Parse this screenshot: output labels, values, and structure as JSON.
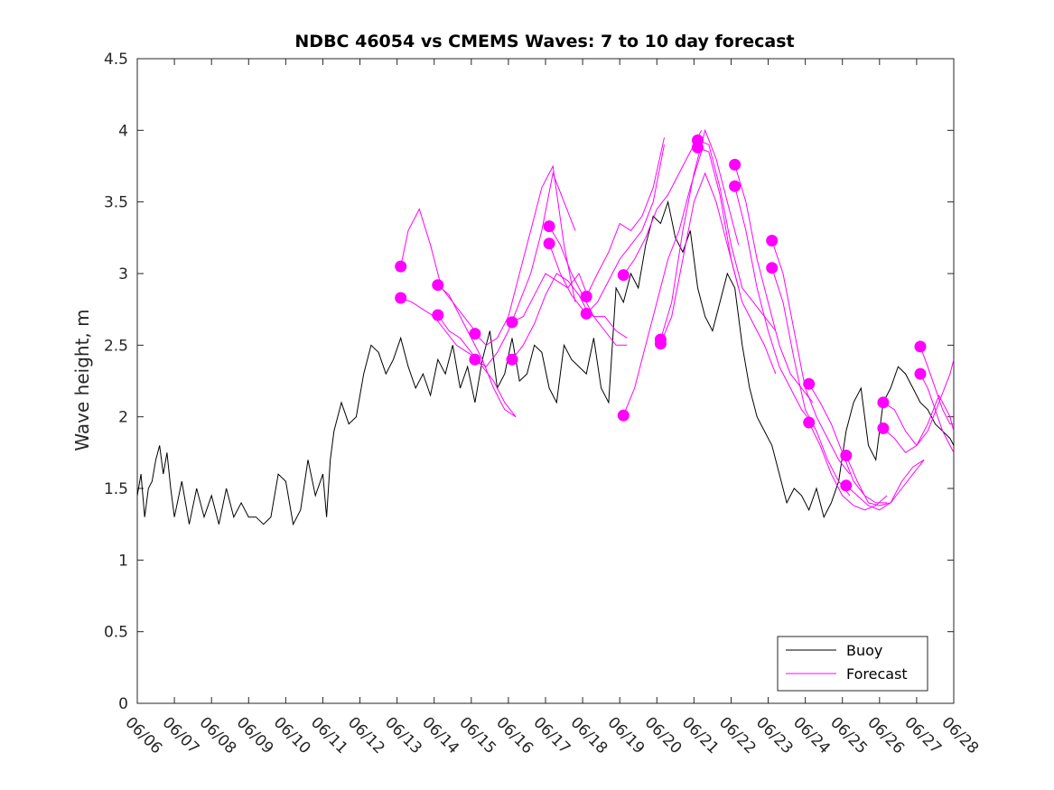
{
  "chart_data": {
    "type": "line",
    "title": "NDBC 46054 vs CMEMS Waves: 7 to 10 day forecast",
    "xlabel": "",
    "ylabel": "Wave height, m",
    "ylim": [
      0,
      4.5
    ],
    "yticks": [
      "0",
      "0.5",
      "1",
      "1.5",
      "2",
      "2.5",
      "3",
      "3.5",
      "4",
      "4.5"
    ],
    "xlim": [
      "06/06",
      "06/28"
    ],
    "xticks": [
      "06/06",
      "06/07",
      "06/08",
      "06/09",
      "06/10",
      "06/11",
      "06/12",
      "06/13",
      "06/14",
      "06/15",
      "06/16",
      "06/17",
      "06/18",
      "06/19",
      "06/20",
      "06/21",
      "06/22",
      "06/23",
      "06/24",
      "06/25",
      "06/26",
      "06/27",
      "06/28"
    ],
    "grid": false,
    "legend": {
      "placement": "bottom-right",
      "entries": [
        "Buoy",
        "Forecast"
      ]
    },
    "colors": {
      "buoy": "#000000",
      "forecast": "#ff00ff"
    },
    "series": [
      {
        "name": "Buoy",
        "x": [
          0,
          0.1,
          0.2,
          0.3,
          0.4,
          0.5,
          0.6,
          0.7,
          0.8,
          0.9,
          1.0,
          1.2,
          1.4,
          1.6,
          1.8,
          2.0,
          2.2,
          2.4,
          2.6,
          2.8,
          3.0,
          3.2,
          3.4,
          3.6,
          3.8,
          4.0,
          4.2,
          4.4,
          4.6,
          4.8,
          5.0,
          5.1,
          5.2,
          5.3,
          5.5,
          5.7,
          5.9,
          6.1,
          6.3,
          6.5,
          6.7,
          6.9,
          7.1,
          7.3,
          7.5,
          7.7,
          7.9,
          8.1,
          8.3,
          8.5,
          8.7,
          8.9,
          9.1,
          9.3,
          9.5,
          9.7,
          9.9,
          10.1,
          10.3,
          10.5,
          10.7,
          10.9,
          11.1,
          11.3,
          11.5,
          11.7,
          11.9,
          12.1,
          12.3,
          12.5,
          12.7,
          12.9,
          13.1,
          13.3,
          13.5,
          13.7,
          13.9,
          14.1,
          14.3,
          14.5,
          14.7,
          14.9,
          15.1,
          15.3,
          15.5,
          15.7,
          15.9,
          16.1,
          16.3,
          16.5,
          16.7,
          16.9,
          17.1,
          17.3,
          17.5,
          17.7,
          17.9,
          18.1,
          18.3,
          18.5,
          18.7,
          18.9,
          19.1,
          19.3,
          19.5,
          19.7,
          19.9,
          20.1,
          20.3,
          20.5,
          20.7,
          20.9,
          21.1,
          21.3,
          21.5,
          21.7,
          21.9,
          22.0
        ],
        "y": [
          1.45,
          1.6,
          1.3,
          1.5,
          1.55,
          1.7,
          1.8,
          1.6,
          1.75,
          1.5,
          1.3,
          1.55,
          1.25,
          1.5,
          1.3,
          1.45,
          1.25,
          1.5,
          1.3,
          1.4,
          1.3,
          1.3,
          1.25,
          1.3,
          1.6,
          1.55,
          1.25,
          1.35,
          1.7,
          1.45,
          1.6,
          1.3,
          1.7,
          1.9,
          2.1,
          1.95,
          2.0,
          2.3,
          2.5,
          2.45,
          2.3,
          2.4,
          2.55,
          2.35,
          2.2,
          2.3,
          2.15,
          2.4,
          2.3,
          2.5,
          2.2,
          2.35,
          2.1,
          2.4,
          2.6,
          2.2,
          2.3,
          2.55,
          2.25,
          2.3,
          2.5,
          2.45,
          2.2,
          2.1,
          2.5,
          2.4,
          2.35,
          2.3,
          2.55,
          2.2,
          2.1,
          2.9,
          2.8,
          3.0,
          2.9,
          3.2,
          3.4,
          3.35,
          3.5,
          3.25,
          3.15,
          3.3,
          2.9,
          2.7,
          2.6,
          2.8,
          3.0,
          2.9,
          2.5,
          2.2,
          2.0,
          1.9,
          1.8,
          1.6,
          1.4,
          1.5,
          1.45,
          1.35,
          1.5,
          1.3,
          1.4,
          1.55,
          1.9,
          2.1,
          2.2,
          1.8,
          1.7,
          2.1,
          2.2,
          2.35,
          2.3,
          2.2,
          2.1,
          2.05,
          1.95,
          1.9,
          1.85,
          1.8
        ]
      },
      {
        "name": "Forecast",
        "x": [
          7.1,
          7.3,
          7.6,
          7.9,
          8.2,
          8.5,
          8.8,
          9.1
        ],
        "y": [
          3.05,
          3.3,
          3.45,
          3.2,
          2.9,
          2.8,
          2.7,
          2.6
        ]
      },
      {
        "name": "Forecast",
        "x": [
          7.1,
          7.4,
          7.7,
          8.0,
          8.3,
          8.6,
          8.9,
          9.2
        ],
        "y": [
          2.83,
          2.8,
          2.75,
          2.7,
          2.6,
          2.5,
          2.45,
          2.4
        ]
      },
      {
        "name": "Forecast",
        "x": [
          8.1,
          8.4,
          8.7,
          9.0,
          9.3,
          9.6,
          9.9,
          10.2
        ],
        "y": [
          2.92,
          2.85,
          2.7,
          2.55,
          2.4,
          2.2,
          2.05,
          2.0
        ]
      },
      {
        "name": "Forecast",
        "x": [
          8.1,
          8.4,
          8.7,
          9.0,
          9.3,
          9.6,
          9.9,
          10.2
        ],
        "y": [
          2.71,
          2.6,
          2.55,
          2.45,
          2.35,
          2.25,
          2.1,
          2.0
        ]
      },
      {
        "name": "Forecast",
        "x": [
          9.1,
          9.4,
          9.7,
          10.0,
          10.3,
          10.6,
          10.9,
          11.2,
          11.5,
          11.8
        ],
        "y": [
          2.58,
          2.5,
          2.55,
          2.7,
          3.0,
          3.3,
          3.6,
          3.75,
          3.2,
          2.8
        ]
      },
      {
        "name": "Forecast",
        "x": [
          9.1,
          9.4,
          9.7,
          10.0,
          10.3,
          10.6,
          10.9,
          11.2,
          11.5,
          11.8
        ],
        "y": [
          2.4,
          2.35,
          2.45,
          2.6,
          2.8,
          3.0,
          3.3,
          3.7,
          3.5,
          3.3
        ]
      },
      {
        "name": "Forecast",
        "x": [
          10.1,
          10.4,
          10.7,
          11.0,
          11.3,
          11.6,
          11.9,
          12.2
        ],
        "y": [
          2.66,
          2.7,
          2.85,
          3.0,
          2.95,
          2.9,
          3.0,
          2.8
        ]
      },
      {
        "name": "Forecast",
        "x": [
          10.1,
          10.4,
          10.7,
          11.0,
          11.3,
          11.6,
          11.9,
          12.2
        ],
        "y": [
          2.4,
          2.5,
          2.65,
          2.85,
          3.0,
          2.95,
          2.85,
          2.7
        ]
      },
      {
        "name": "Forecast",
        "x": [
          11.1,
          11.4,
          11.7,
          12.0,
          12.3,
          12.6,
          12.9,
          13.2
        ],
        "y": [
          3.33,
          3.2,
          3.0,
          2.85,
          2.7,
          2.6,
          2.5,
          2.5
        ]
      },
      {
        "name": "Forecast",
        "x": [
          11.1,
          11.4,
          11.7,
          12.0,
          12.3,
          12.6,
          12.9,
          13.2
        ],
        "y": [
          3.21,
          3.0,
          2.85,
          2.75,
          2.7,
          2.7,
          2.6,
          2.55
        ]
      },
      {
        "name": "Forecast",
        "x": [
          12.1,
          12.4,
          12.7,
          13.0,
          13.3,
          13.6,
          13.9,
          14.2
        ],
        "y": [
          2.84,
          3.0,
          3.15,
          3.35,
          3.3,
          3.4,
          3.6,
          3.95
        ]
      },
      {
        "name": "Forecast",
        "x": [
          12.1,
          12.4,
          12.7,
          13.0,
          13.3,
          13.6,
          13.9,
          14.2
        ],
        "y": [
          2.72,
          2.8,
          2.95,
          3.1,
          3.2,
          3.3,
          3.5,
          3.9
        ]
      },
      {
        "name": "Forecast",
        "x": [
          13.1,
          13.4,
          13.7,
          14.0,
          14.3,
          14.6,
          14.9,
          15.2
        ],
        "y": [
          2.99,
          3.1,
          3.25,
          3.45,
          3.55,
          3.7,
          3.85,
          4.0
        ]
      },
      {
        "name": "Forecast",
        "x": [
          13.1,
          13.4,
          13.7,
          14.0,
          14.3,
          14.6,
          14.9,
          15.2
        ],
        "y": [
          2.01,
          2.2,
          2.5,
          2.8,
          3.1,
          3.3,
          3.6,
          3.85
        ]
      },
      {
        "name": "Forecast",
        "x": [
          14.1,
          14.4,
          14.7,
          15.0,
          15.3,
          15.6,
          15.9,
          16.2
        ],
        "y": [
          2.54,
          2.8,
          3.3,
          3.7,
          4.0,
          3.8,
          3.5,
          3.2
        ]
      },
      {
        "name": "Forecast",
        "x": [
          14.1,
          14.4,
          14.7,
          15.0,
          15.3,
          15.6,
          15.9,
          16.2
        ],
        "y": [
          2.51,
          2.7,
          3.1,
          3.5,
          3.7,
          3.5,
          3.2,
          2.9
        ]
      },
      {
        "name": "Forecast",
        "x": [
          15.1,
          15.4,
          15.7,
          16.0,
          16.3,
          16.6,
          16.9,
          17.2
        ],
        "y": [
          3.93,
          3.9,
          3.6,
          3.2,
          2.9,
          2.8,
          2.7,
          2.6
        ]
      },
      {
        "name": "Forecast",
        "x": [
          15.1,
          15.4,
          15.7,
          16.0,
          16.3,
          16.6,
          16.9,
          17.2
        ],
        "y": [
          3.88,
          3.85,
          3.55,
          3.1,
          2.8,
          2.65,
          2.5,
          2.3
        ]
      },
      {
        "name": "Forecast",
        "x": [
          16.1,
          16.4,
          16.7,
          17.0,
          17.3,
          17.6,
          17.9,
          18.2
        ],
        "y": [
          3.76,
          3.5,
          3.1,
          2.8,
          2.5,
          2.3,
          2.2,
          2.1
        ]
      },
      {
        "name": "Forecast",
        "x": [
          16.1,
          16.4,
          16.7,
          17.0,
          17.3,
          17.6,
          17.9,
          18.2
        ],
        "y": [
          3.61,
          3.3,
          2.9,
          2.6,
          2.35,
          2.2,
          2.05,
          1.95
        ]
      },
      {
        "name": "Forecast",
        "x": [
          17.1,
          17.4,
          17.7,
          18.0,
          18.3,
          18.6,
          18.9,
          19.2
        ],
        "y": [
          3.23,
          3.0,
          2.6,
          2.2,
          2.0,
          1.85,
          1.7,
          1.6
        ]
      },
      {
        "name": "Forecast",
        "x": [
          17.1,
          17.4,
          17.7,
          18.0,
          18.3,
          18.6,
          18.9,
          19.2
        ],
        "y": [
          3.04,
          2.8,
          2.4,
          2.05,
          1.9,
          1.7,
          1.55,
          1.45
        ]
      },
      {
        "name": "Forecast",
        "x": [
          18.1,
          18.4,
          18.7,
          19.0,
          19.3,
          19.6,
          19.9,
          20.2
        ],
        "y": [
          2.23,
          2.1,
          1.95,
          1.75,
          1.55,
          1.45,
          1.4,
          1.4
        ]
      },
      {
        "name": "Forecast",
        "x": [
          18.1,
          18.4,
          18.7,
          19.0,
          19.3,
          19.6,
          19.9,
          20.2
        ],
        "y": [
          1.96,
          1.8,
          1.6,
          1.45,
          1.38,
          1.35,
          1.38,
          1.45
        ]
      },
      {
        "name": "Forecast",
        "x": [
          19.1,
          19.4,
          19.7,
          20.0,
          20.3,
          20.6,
          20.9,
          21.2
        ],
        "y": [
          1.73,
          1.55,
          1.4,
          1.38,
          1.4,
          1.55,
          1.65,
          1.7
        ]
      },
      {
        "name": "Forecast",
        "x": [
          19.1,
          19.4,
          19.7,
          20.0,
          20.3,
          20.6,
          20.9,
          21.2
        ],
        "y": [
          1.52,
          1.45,
          1.38,
          1.35,
          1.4,
          1.5,
          1.6,
          1.7
        ]
      },
      {
        "name": "Forecast",
        "x": [
          20.1,
          20.4,
          20.7,
          21.0,
          21.3,
          21.6,
          21.9,
          22.0
        ],
        "y": [
          2.1,
          2.05,
          1.9,
          1.8,
          1.9,
          2.1,
          2.3,
          2.4
        ]
      },
      {
        "name": "Forecast",
        "x": [
          20.1,
          20.4,
          20.7,
          21.0,
          21.3,
          21.6,
          21.9,
          22.0
        ],
        "y": [
          1.92,
          1.85,
          1.75,
          1.8,
          1.95,
          2.15,
          2.0,
          1.9
        ]
      },
      {
        "name": "Forecast",
        "x": [
          21.1,
          21.3,
          21.5,
          21.7,
          21.9,
          22.0
        ],
        "y": [
          2.49,
          2.35,
          2.2,
          2.05,
          1.95,
          1.95
        ]
      },
      {
        "name": "Forecast",
        "x": [
          21.1,
          21.3,
          21.5,
          21.7,
          21.9,
          22.0
        ],
        "y": [
          2.3,
          2.2,
          2.05,
          1.9,
          1.8,
          1.75
        ]
      }
    ],
    "forecast_start_points": {
      "x": [
        7.1,
        7.1,
        8.1,
        8.1,
        9.1,
        9.1,
        10.1,
        10.1,
        11.1,
        11.1,
        12.1,
        12.1,
        13.1,
        13.1,
        14.1,
        14.1,
        15.1,
        15.1,
        16.1,
        16.1,
        17.1,
        17.1,
        18.1,
        18.1,
        19.1,
        19.1,
        20.1,
        20.1,
        21.1,
        21.1
      ],
      "y": [
        3.05,
        2.83,
        2.92,
        2.71,
        2.58,
        2.4,
        2.66,
        2.4,
        3.33,
        3.21,
        2.84,
        2.72,
        2.99,
        2.01,
        2.54,
        2.51,
        3.93,
        3.88,
        3.76,
        3.61,
        3.23,
        3.04,
        2.23,
        1.96,
        1.73,
        1.52,
        2.1,
        1.92,
        2.49,
        2.3
      ]
    }
  }
}
